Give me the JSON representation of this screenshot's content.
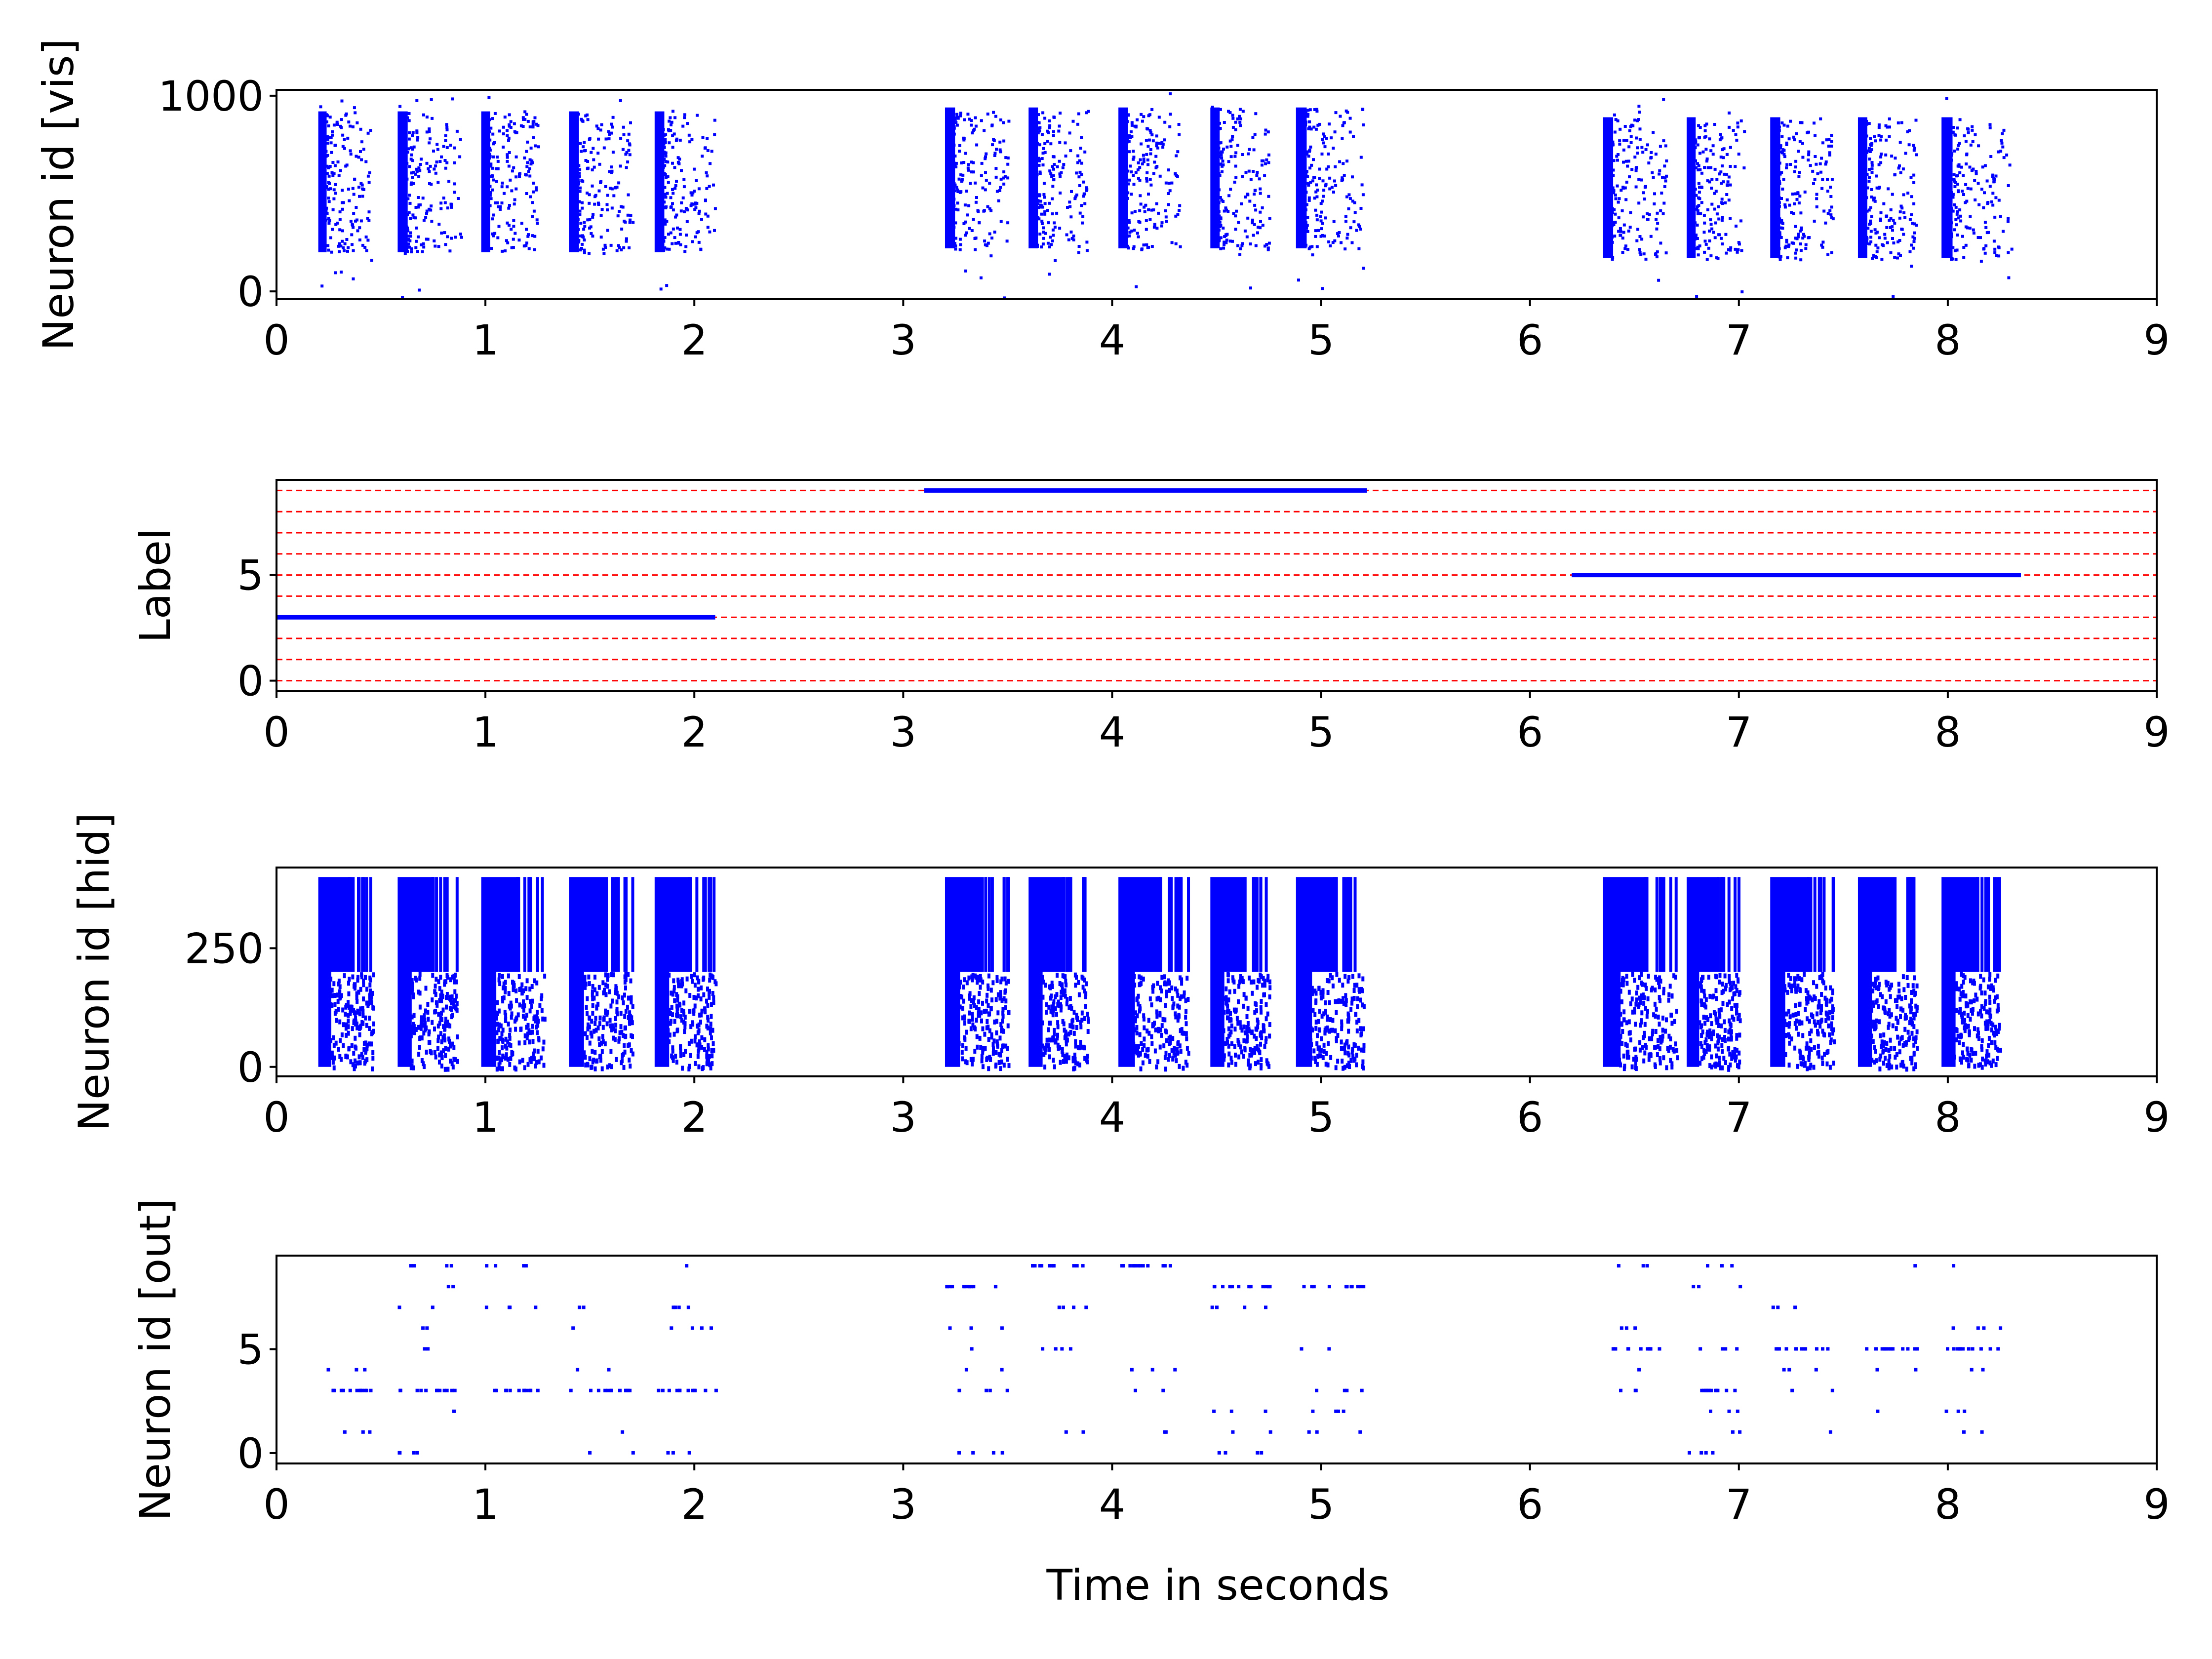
{
  "figure": {
    "xlabel": "Time in seconds"
  },
  "colors": {
    "spikes": "#0000ff",
    "label_line": "#0000ff",
    "label_grid": "#ff0000",
    "axes": "#000000",
    "background": "#ffffff"
  },
  "chart_data": [
    {
      "type": "scatter",
      "name": "visible-raster",
      "ylabel": "Neuron id [vis]",
      "xlim": [
        0,
        9
      ],
      "ylim": [
        -40,
        1030
      ],
      "xticks": [
        "0",
        "1",
        "2",
        "3",
        "4",
        "5",
        "6",
        "7",
        "8",
        "9"
      ],
      "yticks": [
        {
          "value": 0,
          "label": "0"
        },
        {
          "value": 1000,
          "label": "1000"
        }
      ],
      "marker": "small square",
      "bursts": [
        {
          "start": 0.2,
          "end": 0.45,
          "ymin": 200,
          "ymax": 920
        },
        {
          "start": 0.58,
          "end": 0.88,
          "ymin": 200,
          "ymax": 920
        },
        {
          "start": 0.98,
          "end": 1.25,
          "ymin": 200,
          "ymax": 920
        },
        {
          "start": 1.4,
          "end": 1.7,
          "ymin": 200,
          "ymax": 920
        },
        {
          "start": 1.81,
          "end": 2.1,
          "ymin": 200,
          "ymax": 920
        },
        {
          "start": 3.2,
          "end": 3.5,
          "ymin": 220,
          "ymax": 940
        },
        {
          "start": 3.6,
          "end": 3.88,
          "ymin": 220,
          "ymax": 940
        },
        {
          "start": 4.03,
          "end": 4.32,
          "ymin": 220,
          "ymax": 940
        },
        {
          "start": 4.47,
          "end": 4.75,
          "ymin": 220,
          "ymax": 940
        },
        {
          "start": 4.88,
          "end": 5.2,
          "ymin": 220,
          "ymax": 940
        },
        {
          "start": 6.35,
          "end": 6.65,
          "ymin": 170,
          "ymax": 890
        },
        {
          "start": 6.75,
          "end": 7.02,
          "ymin": 170,
          "ymax": 890
        },
        {
          "start": 7.15,
          "end": 7.45,
          "ymin": 170,
          "ymax": 890
        },
        {
          "start": 7.57,
          "end": 7.85,
          "ymin": 170,
          "ymax": 890
        },
        {
          "start": 7.97,
          "end": 8.3,
          "ymin": 170,
          "ymax": 890
        }
      ]
    },
    {
      "type": "line",
      "name": "label-trace",
      "ylabel": "Label",
      "xlim": [
        0,
        9
      ],
      "ylim": [
        -0.5,
        9.5
      ],
      "xticks": [
        "0",
        "1",
        "2",
        "3",
        "4",
        "5",
        "6",
        "7",
        "8",
        "9"
      ],
      "yticks": [
        {
          "value": 0,
          "label": "0"
        },
        {
          "value": 5,
          "label": "5"
        }
      ],
      "grid_levels": [
        0,
        1,
        2,
        3,
        4,
        5,
        6,
        7,
        8,
        9
      ],
      "segments": [
        {
          "start": 0.0,
          "end": 2.1,
          "label": 3
        },
        {
          "start": 3.1,
          "end": 5.22,
          "label": 9
        },
        {
          "start": 6.2,
          "end": 8.35,
          "label": 5
        }
      ]
    },
    {
      "type": "scatter",
      "name": "hidden-raster",
      "ylabel": "Neuron id [hid]",
      "xlim": [
        0,
        9
      ],
      "ylim": [
        -20,
        420
      ],
      "xticks": [
        "0",
        "1",
        "2",
        "3",
        "4",
        "5",
        "6",
        "7",
        "8",
        "9"
      ],
      "yticks": [
        {
          "value": 0,
          "label": "0"
        },
        {
          "value": 250,
          "label": "250"
        }
      ],
      "marker": "small square",
      "split": 200,
      "bursts": [
        {
          "start": 0.2,
          "end": 0.46,
          "ymin": 0,
          "ymax": 400
        },
        {
          "start": 0.58,
          "end": 0.86,
          "ymin": 0,
          "ymax": 400
        },
        {
          "start": 0.98,
          "end": 1.28,
          "ymin": 0,
          "ymax": 400
        },
        {
          "start": 1.4,
          "end": 1.7,
          "ymin": 0,
          "ymax": 400
        },
        {
          "start": 1.81,
          "end": 2.1,
          "ymin": 0,
          "ymax": 400
        },
        {
          "start": 3.2,
          "end": 3.5,
          "ymin": 0,
          "ymax": 400
        },
        {
          "start": 3.6,
          "end": 3.88,
          "ymin": 0,
          "ymax": 400
        },
        {
          "start": 4.03,
          "end": 4.36,
          "ymin": 0,
          "ymax": 400
        },
        {
          "start": 4.47,
          "end": 4.75,
          "ymin": 0,
          "ymax": 400
        },
        {
          "start": 4.88,
          "end": 5.2,
          "ymin": 0,
          "ymax": 400
        },
        {
          "start": 6.35,
          "end": 6.7,
          "ymin": 0,
          "ymax": 400
        },
        {
          "start": 6.75,
          "end": 7.0,
          "ymin": 0,
          "ymax": 400
        },
        {
          "start": 7.15,
          "end": 7.45,
          "ymin": 0,
          "ymax": 400
        },
        {
          "start": 7.57,
          "end": 7.85,
          "ymin": 0,
          "ymax": 400
        },
        {
          "start": 7.97,
          "end": 8.25,
          "ymin": 0,
          "ymax": 400
        }
      ]
    },
    {
      "type": "scatter",
      "name": "output-raster",
      "ylabel": "Neuron id [out]",
      "xlim": [
        0,
        9
      ],
      "ylim": [
        -0.5,
        9.5
      ],
      "xticks": [
        "0",
        "1",
        "2",
        "3",
        "4",
        "5",
        "6",
        "7",
        "8",
        "9"
      ],
      "yticks": [
        {
          "value": 0,
          "label": "0"
        },
        {
          "value": 5,
          "label": "5"
        }
      ],
      "marker": "small square",
      "bursts": [
        {
          "start": 0.2,
          "end": 0.46,
          "dominant": 3
        },
        {
          "start": 0.58,
          "end": 0.88,
          "dominant": 3
        },
        {
          "start": 0.98,
          "end": 1.25,
          "dominant": 3
        },
        {
          "start": 1.4,
          "end": 1.7,
          "dominant": 3
        },
        {
          "start": 1.81,
          "end": 2.1,
          "dominant": 3
        },
        {
          "start": 3.2,
          "end": 3.5,
          "dominant": 8
        },
        {
          "start": 3.6,
          "end": 3.88,
          "dominant": 9
        },
        {
          "start": 4.03,
          "end": 4.3,
          "dominant": 9
        },
        {
          "start": 4.47,
          "end": 4.75,
          "dominant": 8
        },
        {
          "start": 4.88,
          "end": 5.2,
          "dominant": 8
        },
        {
          "start": 6.35,
          "end": 6.65,
          "dominant": 5
        },
        {
          "start": 6.75,
          "end": 7.02,
          "dominant": 3
        },
        {
          "start": 7.15,
          "end": 7.45,
          "dominant": 5
        },
        {
          "start": 7.57,
          "end": 7.85,
          "dominant": 5
        },
        {
          "start": 7.97,
          "end": 8.25,
          "dominant": 5
        }
      ]
    }
  ]
}
